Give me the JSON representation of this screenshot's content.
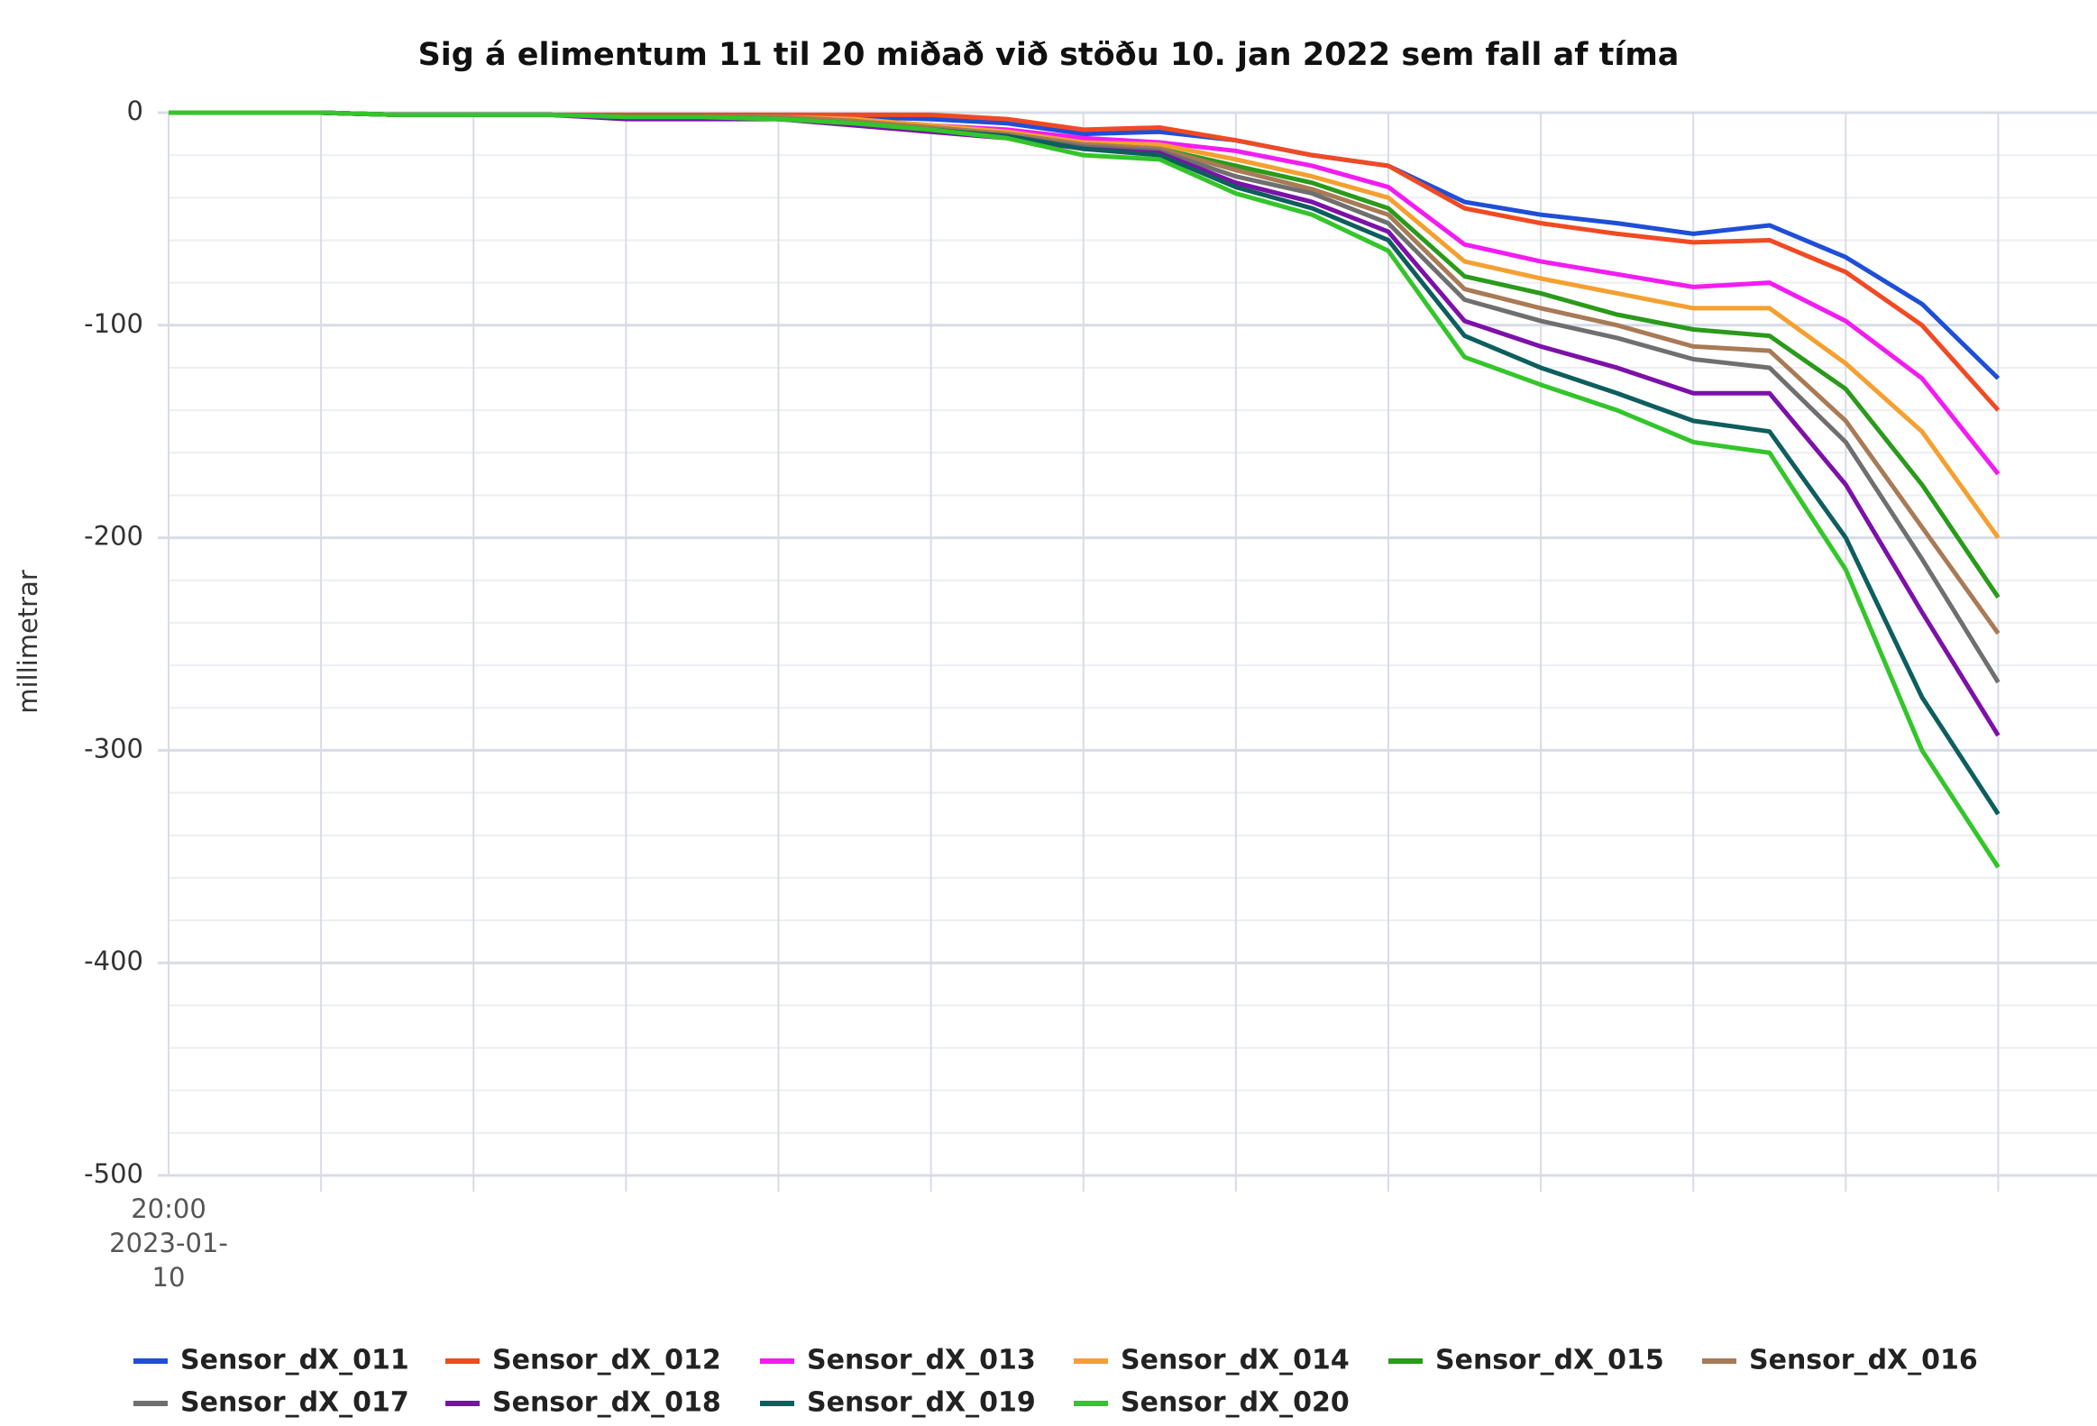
{
  "chart_data": {
    "type": "line",
    "title": "Sig á elimentum 11 til 20 miðað við stöðu 10. jan 2022 sem fall af tíma",
    "y_label": "millimetrar",
    "categories": [
      "20:00 2023-01-10",
      null,
      null,
      null,
      null,
      null,
      null,
      null,
      null,
      null,
      null,
      null,
      null,
      null,
      null,
      null,
      null,
      null,
      null,
      null,
      null,
      null,
      null,
      null,
      null
    ],
    "ylim": [
      -500,
      0
    ],
    "yticks": [
      0,
      -100,
      -200,
      -300,
      -400,
      -500
    ],
    "grid": true,
    "series": [
      {
        "name": "Sensor_dX_011",
        "color": "#1f4fd6",
        "values": [
          0,
          0,
          0,
          -1,
          -1,
          -1,
          -2,
          -2,
          -2,
          -2,
          -3,
          -5,
          -10,
          -9,
          -13,
          -20,
          -25,
          -42,
          -48,
          -52,
          -57,
          -53,
          -68,
          -90,
          -125
        ]
      },
      {
        "name": "Sensor_dX_012",
        "color": "#f04a23",
        "values": [
          0,
          0,
          0,
          -1,
          -1,
          -1,
          -1,
          -1,
          -1,
          -1,
          -1,
          -3,
          -8,
          -7,
          -13,
          -20,
          -25,
          -45,
          -52,
          -57,
          -61,
          -60,
          -75,
          -100,
          -140
        ]
      },
      {
        "name": "Sensor_dX_013",
        "color": "#f21cf2",
        "values": [
          0,
          0,
          0,
          -1,
          -1,
          -1,
          -2,
          -2,
          -2,
          -3,
          -6,
          -8,
          -12,
          -14,
          -18,
          -25,
          -35,
          -62,
          -70,
          -76,
          -82,
          -80,
          -98,
          -125,
          -170
        ]
      },
      {
        "name": "Sensor_dX_014",
        "color": "#f4a030",
        "values": [
          0,
          0,
          0,
          -1,
          -1,
          -1,
          -2,
          -2,
          -2,
          -3,
          -6,
          -9,
          -14,
          -15,
          -22,
          -30,
          -40,
          -70,
          -78,
          -85,
          -92,
          -92,
          -118,
          -150,
          -200
        ]
      },
      {
        "name": "Sensor_dX_015",
        "color": "#2a9a1a",
        "values": [
          0,
          0,
          0,
          -1,
          -1,
          -1,
          -2,
          -2,
          -2,
          -4,
          -7,
          -10,
          -15,
          -17,
          -25,
          -33,
          -45,
          -77,
          -85,
          -95,
          -102,
          -105,
          -130,
          -175,
          -228
        ]
      },
      {
        "name": "Sensor_dX_016",
        "color": "#a87a56",
        "values": [
          0,
          0,
          0,
          -1,
          -1,
          -1,
          -2,
          -2,
          -2,
          -4,
          -7,
          -10,
          -15,
          -17,
          -27,
          -36,
          -48,
          -83,
          -92,
          -100,
          -110,
          -112,
          -145,
          -195,
          -245
        ]
      },
      {
        "name": "Sensor_dX_017",
        "color": "#6f6f6f",
        "values": [
          0,
          0,
          0,
          -1,
          -1,
          -1,
          -2,
          -2,
          -3,
          -5,
          -8,
          -11,
          -16,
          -18,
          -30,
          -38,
          -52,
          -88,
          -98,
          -106,
          -116,
          -120,
          -155,
          -210,
          -268
        ]
      },
      {
        "name": "Sensor_dX_018",
        "color": "#7c11a8",
        "values": [
          0,
          0,
          0,
          -1,
          -1,
          -1,
          -3,
          -3,
          -3,
          -6,
          -9,
          -12,
          -17,
          -19,
          -33,
          -42,
          -56,
          -98,
          -110,
          -120,
          -132,
          -132,
          -175,
          -235,
          -293
        ]
      },
      {
        "name": "Sensor_dX_019",
        "color": "#0e5e5e",
        "values": [
          0,
          0,
          0,
          -1,
          -1,
          -1,
          -2,
          -2,
          -3,
          -5,
          -8,
          -11,
          -17,
          -20,
          -35,
          -45,
          -60,
          -105,
          -120,
          -132,
          -145,
          -150,
          -200,
          -275,
          -330
        ]
      },
      {
        "name": "Sensor_dX_020",
        "color": "#33c52a",
        "values": [
          0,
          0,
          0,
          -1,
          -1,
          -1,
          -2,
          -2,
          -3,
          -5,
          -8,
          -12,
          -20,
          -22,
          -38,
          -48,
          -65,
          -115,
          -128,
          -140,
          -155,
          -160,
          -215,
          -300,
          -355
        ]
      }
    ]
  }
}
